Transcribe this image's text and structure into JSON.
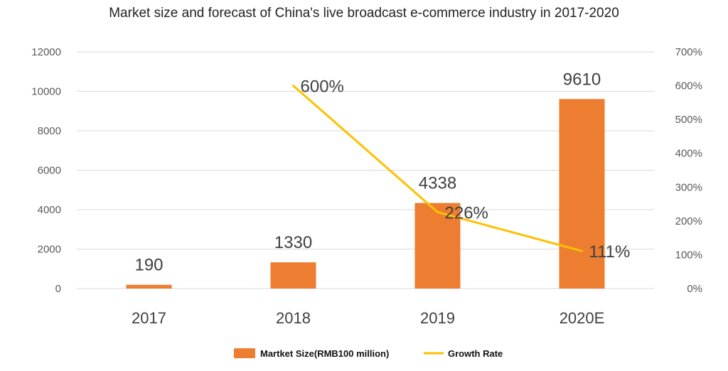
{
  "chart_data": {
    "type": "bar",
    "title": "Market size and forecast of China's live broadcast e-commerce industry in 2017-2020",
    "categories": [
      "2017",
      "2018",
      "2019",
      "2020E"
    ],
    "series": [
      {
        "name": "Martket Size(RMB100 million)",
        "type": "bar",
        "axis": "left",
        "color": "#ED7D31",
        "values": [
          190,
          1330,
          4338,
          9610
        ],
        "labels": [
          "190",
          "1330",
          "4338",
          "9610"
        ]
      },
      {
        "name": "Growth Rate",
        "type": "line",
        "axis": "right",
        "color": "#FFC000",
        "values": [
          null,
          600,
          226,
          111
        ],
        "labels": [
          "",
          "600%",
          "226%",
          "111%"
        ]
      }
    ],
    "y_left": {
      "min": 0,
      "max": 12000,
      "ticks": [
        "0",
        "2000",
        "4000",
        "6000",
        "8000",
        "10000",
        "12000"
      ]
    },
    "y_right": {
      "min": 0,
      "max": 700,
      "ticks": [
        "0%",
        "100%",
        "200%",
        "300%",
        "400%",
        "500%",
        "600%",
        "700%"
      ]
    },
    "grid": true,
    "legend_position": "bottom"
  }
}
